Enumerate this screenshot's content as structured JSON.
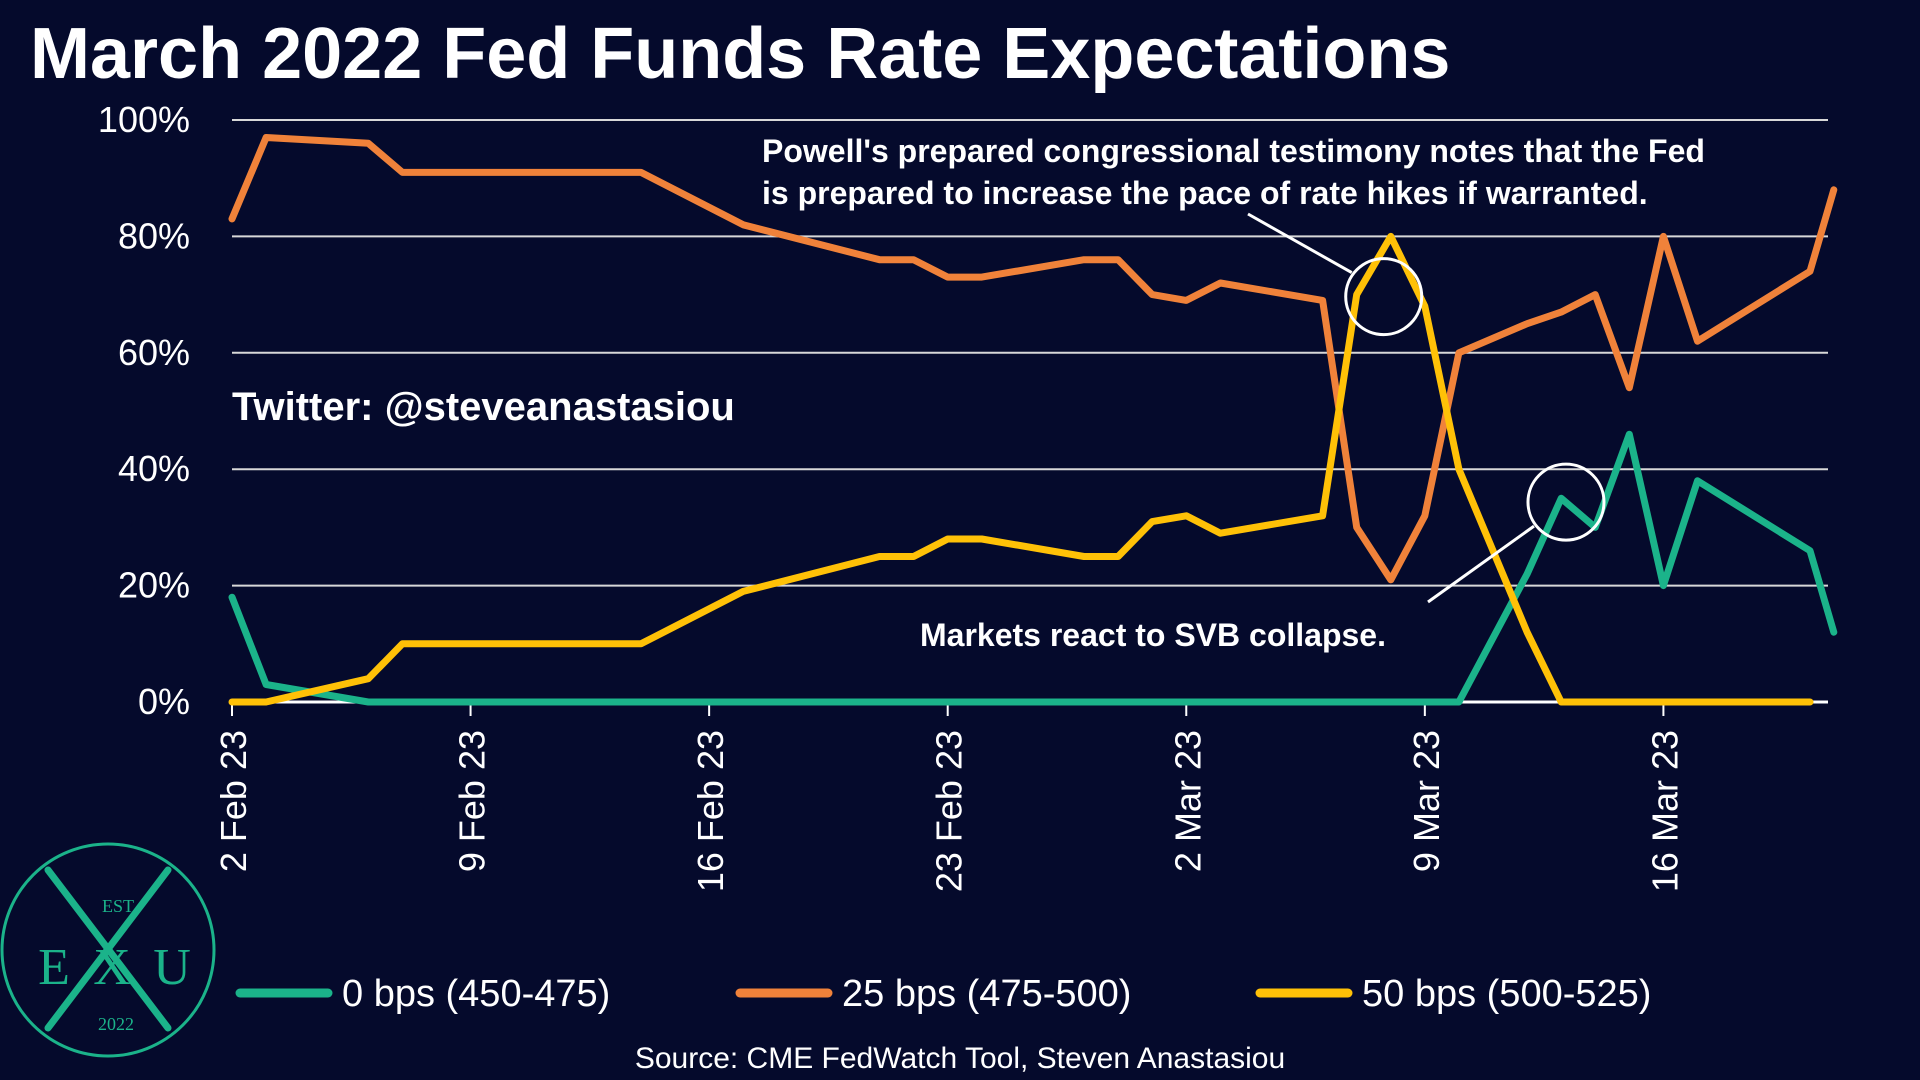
{
  "chart_data": {
    "type": "line",
    "title": "March 2022 Fed Funds Rate Expectations",
    "watermark": "Twitter: @steveanastasiou",
    "source": "Source: CME FedWatch Tool, Steven Anastasiou",
    "ylim": [
      0,
      100
    ],
    "xlim": [
      0,
      46
    ],
    "yticks": [
      0,
      20,
      40,
      60,
      80,
      100
    ],
    "ytick_labels": [
      "0%",
      "20%",
      "40%",
      "60%",
      "80%",
      "100%"
    ],
    "xticks": [
      0,
      7,
      14,
      21,
      28,
      35,
      42
    ],
    "xtick_labels": [
      "2 Feb 23",
      "9 Feb 23",
      "16 Feb 23",
      "23 Feb 23",
      "2 Mar 23",
      "9 Mar 23",
      "16 Mar 23"
    ],
    "grid": true,
    "legend_position": "bottom",
    "series": [
      {
        "name": "0 bps (450-475)",
        "color": "#1bb38a",
        "x": [
          0,
          1,
          4,
          35,
          36,
          38,
          39,
          40,
          41,
          42,
          43,
          46.3,
          47
        ],
        "values": [
          18,
          3,
          0,
          0,
          0,
          22,
          35,
          30,
          46,
          20,
          38,
          26,
          12
        ]
      },
      {
        "name": "25 bps (475-500)",
        "color": "#f0823a",
        "x": [
          0,
          1,
          4,
          5,
          12,
          15,
          19,
          20,
          21,
          22,
          25,
          26,
          27,
          28,
          29,
          32,
          33,
          34,
          35,
          36,
          38,
          39,
          40,
          41,
          42,
          43,
          46.3,
          47
        ],
        "values": [
          83,
          97,
          96,
          91,
          91,
          82,
          76,
          76,
          73,
          73,
          76,
          76,
          70,
          69,
          72,
          69,
          30,
          21,
          32,
          60,
          65,
          67,
          70,
          54,
          80,
          62,
          74,
          88
        ]
      },
      {
        "name": "50 bps (500-525)",
        "color": "#ffc107",
        "x": [
          0,
          1,
          4,
          5,
          12,
          15,
          19,
          20,
          21,
          22,
          25,
          26,
          27,
          28,
          29,
          32,
          33,
          34,
          35,
          36,
          38,
          39,
          40,
          41,
          42,
          43,
          46.3
        ],
        "values": [
          0,
          0,
          4,
          10,
          10,
          19,
          25,
          25,
          28,
          28,
          25,
          25,
          31,
          32,
          29,
          32,
          70,
          80,
          68,
          40,
          12,
          0,
          0,
          0,
          0,
          0,
          0
        ]
      }
    ],
    "annotations": [
      {
        "text_lines": [
          "Powell's prepared congressional testimony notes that the Fed",
          "is prepared to increase the pace of rate hikes if warranted."
        ],
        "target_x": 33.5,
        "target_y": 70
      },
      {
        "text_lines": [
          "Markets react to SVB collapse."
        ],
        "target_x": 39.2,
        "target_y": 34
      }
    ]
  },
  "logo": {
    "top": "EST",
    "left": "E",
    "middle": "X",
    "right": "U",
    "bottom": "2022",
    "color": "#1bb38a"
  }
}
